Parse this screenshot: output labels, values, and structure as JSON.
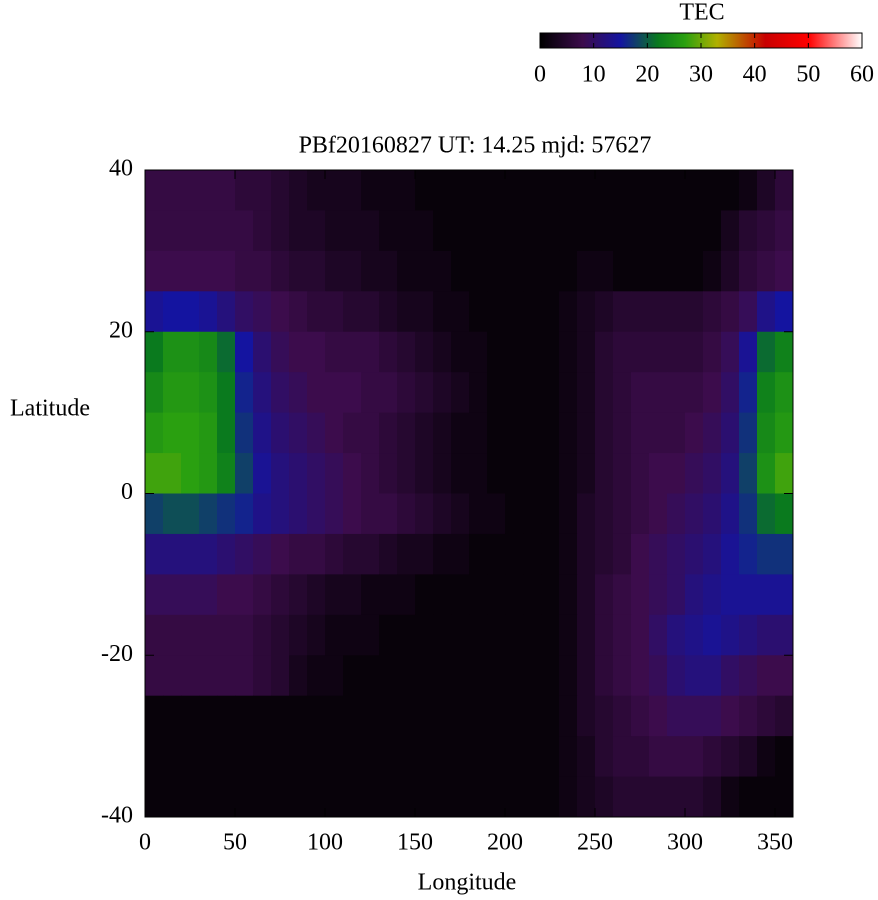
{
  "chart_data": {
    "type": "heatmap",
    "title": "PBf20160827  UT: 14.25  mjd: 57627",
    "x_label": "Longitude",
    "y_label": "Latitude",
    "colorbar_label": "TEC",
    "xlim": [
      0,
      360
    ],
    "xticks": [
      0,
      50,
      100,
      150,
      200,
      250,
      300,
      350
    ],
    "ylim": [
      -40,
      40
    ],
    "yticks": [
      -40,
      -20,
      0,
      20,
      40
    ],
    "clim": [
      0,
      60
    ],
    "cticks": [
      0,
      10,
      20,
      30,
      40,
      50,
      60
    ],
    "colormap": [
      {
        "value": 0,
        "color": "#000000"
      },
      {
        "value": 8,
        "color": "#3c0c4c"
      },
      {
        "value": 15,
        "color": "#1414a0"
      },
      {
        "value": 22,
        "color": "#0a7a1e"
      },
      {
        "value": 27,
        "color": "#2aa010"
      },
      {
        "value": 33,
        "color": "#b0b000"
      },
      {
        "value": 42,
        "color": "#c80000"
      },
      {
        "value": 50,
        "color": "#ff0000"
      },
      {
        "value": 60,
        "color": "#ffffff"
      }
    ],
    "x": [
      5,
      15,
      25,
      35,
      45,
      55,
      65,
      75,
      85,
      95,
      105,
      115,
      125,
      135,
      145,
      155,
      165,
      175,
      185,
      195,
      205,
      215,
      225,
      235,
      245,
      255,
      265,
      275,
      285,
      295,
      305,
      315,
      325,
      335,
      345,
      355
    ],
    "y": [
      37.5,
      32.5,
      27.5,
      22.5,
      17.5,
      12.5,
      7.5,
      2.5,
      -2.5,
      -7.5,
      -12.5,
      -17.5,
      -22.5,
      -27.5,
      -32.5,
      -37.5
    ],
    "z": [
      [
        7,
        7,
        7,
        7,
        7,
        6,
        6,
        5,
        4,
        3,
        3,
        3,
        2,
        2,
        2,
        1,
        1,
        1,
        1,
        1,
        1,
        1,
        1,
        1,
        1,
        1,
        1,
        1,
        1,
        1,
        1,
        1,
        1,
        2,
        4,
        6
      ],
      [
        7,
        7,
        7,
        7,
        7,
        7,
        6,
        5,
        4,
        4,
        3,
        3,
        3,
        2,
        2,
        2,
        1,
        1,
        1,
        1,
        1,
        1,
        1,
        1,
        1,
        1,
        1,
        1,
        1,
        1,
        1,
        1,
        3,
        5,
        6,
        7
      ],
      [
        8,
        8,
        8,
        8,
        8,
        7,
        7,
        6,
        5,
        5,
        4,
        4,
        3,
        3,
        2,
        2,
        2,
        1,
        1,
        1,
        1,
        1,
        1,
        1,
        2,
        2,
        1,
        1,
        1,
        1,
        1,
        2,
        4,
        6,
        7,
        8
      ],
      [
        14,
        15,
        15,
        14,
        12,
        10,
        9,
        8,
        7,
        6,
        6,
        5,
        5,
        4,
        3,
        3,
        2,
        2,
        1,
        1,
        1,
        1,
        1,
        2,
        3,
        4,
        5,
        5,
        5,
        5,
        5,
        6,
        7,
        9,
        13,
        15
      ],
      [
        22,
        25,
        25,
        24,
        21,
        15,
        11,
        9,
        8,
        8,
        7,
        7,
        7,
        6,
        5,
        4,
        3,
        2,
        2,
        1,
        1,
        1,
        1,
        2,
        3,
        5,
        6,
        6,
        6,
        6,
        6,
        7,
        9,
        14,
        21,
        23
      ],
      [
        24,
        26,
        26,
        25,
        22,
        16,
        12,
        10,
        9,
        8,
        8,
        8,
        7,
        7,
        6,
        5,
        4,
        3,
        2,
        1,
        1,
        1,
        1,
        2,
        3,
        5,
        6,
        7,
        7,
        7,
        7,
        8,
        10,
        16,
        23,
        25
      ],
      [
        26,
        27,
        27,
        26,
        22,
        17,
        13,
        11,
        10,
        9,
        8,
        7,
        7,
        6,
        5,
        4,
        3,
        2,
        2,
        1,
        1,
        1,
        1,
        2,
        3,
        5,
        6,
        7,
        7,
        7,
        8,
        9,
        11,
        17,
        24,
        26
      ],
      [
        28,
        28,
        27,
        26,
        23,
        18,
        14,
        12,
        11,
        10,
        9,
        8,
        7,
        6,
        5,
        4,
        3,
        2,
        2,
        1,
        1,
        1,
        1,
        2,
        3,
        5,
        6,
        7,
        8,
        8,
        9,
        10,
        12,
        18,
        25,
        28
      ],
      [
        18,
        19,
        19,
        18,
        17,
        16,
        13,
        12,
        11,
        10,
        9,
        8,
        7,
        7,
        6,
        5,
        4,
        3,
        2,
        2,
        1,
        1,
        1,
        2,
        4,
        5,
        6,
        7,
        8,
        9,
        10,
        11,
        13,
        17,
        21,
        22
      ],
      [
        12,
        12,
        12,
        12,
        11,
        10,
        9,
        8,
        7,
        7,
        6,
        5,
        5,
        4,
        3,
        3,
        2,
        2,
        1,
        1,
        1,
        1,
        1,
        2,
        4,
        5,
        6,
        8,
        9,
        10,
        11,
        12,
        14,
        16,
        17,
        17
      ],
      [
        9,
        9,
        9,
        9,
        8,
        8,
        7,
        6,
        5,
        4,
        3,
        3,
        2,
        2,
        2,
        1,
        1,
        1,
        1,
        1,
        1,
        1,
        1,
        2,
        4,
        6,
        7,
        8,
        9,
        10,
        12,
        13,
        14,
        14,
        14,
        14
      ],
      [
        7,
        7,
        7,
        7,
        7,
        7,
        6,
        5,
        4,
        3,
        2,
        2,
        2,
        1,
        1,
        1,
        1,
        1,
        1,
        1,
        1,
        1,
        1,
        2,
        4,
        6,
        7,
        8,
        10,
        12,
        13,
        14,
        13,
        12,
        11,
        11
      ],
      [
        7,
        7,
        7,
        7,
        7,
        7,
        6,
        5,
        3,
        2,
        2,
        1,
        1,
        1,
        1,
        1,
        1,
        1,
        1,
        1,
        1,
        1,
        1,
        2,
        4,
        6,
        7,
        8,
        9,
        11,
        12,
        12,
        10,
        9,
        8,
        8
      ],
      [
        1,
        1,
        1,
        1,
        1,
        1,
        1,
        1,
        1,
        1,
        1,
        1,
        1,
        1,
        1,
        1,
        1,
        1,
        1,
        1,
        1,
        1,
        1,
        2,
        4,
        5,
        6,
        7,
        8,
        9,
        9,
        9,
        8,
        7,
        6,
        5
      ],
      [
        1,
        1,
        1,
        1,
        1,
        1,
        1,
        1,
        1,
        1,
        1,
        1,
        1,
        1,
        1,
        1,
        1,
        1,
        1,
        1,
        1,
        1,
        1,
        2,
        3,
        5,
        6,
        6,
        7,
        7,
        7,
        6,
        5,
        4,
        2,
        1
      ],
      [
        1,
        1,
        1,
        1,
        1,
        1,
        1,
        1,
        1,
        1,
        1,
        1,
        1,
        1,
        1,
        1,
        1,
        1,
        1,
        1,
        1,
        1,
        1,
        2,
        3,
        4,
        5,
        5,
        5,
        5,
        5,
        4,
        2,
        1,
        1,
        1
      ]
    ]
  }
}
